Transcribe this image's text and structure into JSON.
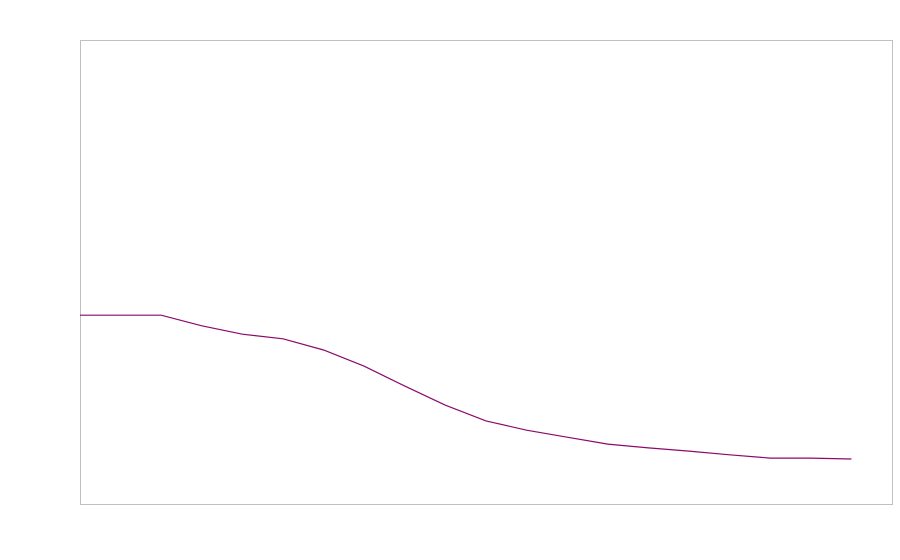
{
  "chart_data": {
    "type": "line",
    "title": "",
    "xlabel": "",
    "ylabel": "",
    "xlim": [
      0,
      20
    ],
    "ylim": [
      0,
      1
    ],
    "grid": false,
    "x": [
      0,
      1,
      2,
      3,
      4,
      5,
      6,
      7,
      8,
      9,
      10,
      11,
      12,
      13,
      14,
      15,
      16,
      17,
      18,
      19
    ],
    "series": [
      {
        "color": "#8b0a6b",
        "values": [
          0.407,
          0.407,
          0.407,
          0.384,
          0.366,
          0.356,
          0.332,
          0.297,
          0.254,
          0.213,
          0.179,
          0.159,
          0.144,
          0.129,
          0.121,
          0.114,
          0.106,
          0.099,
          0.099,
          0.097
        ]
      }
    ],
    "frame_color": "#c0c0c0"
  }
}
